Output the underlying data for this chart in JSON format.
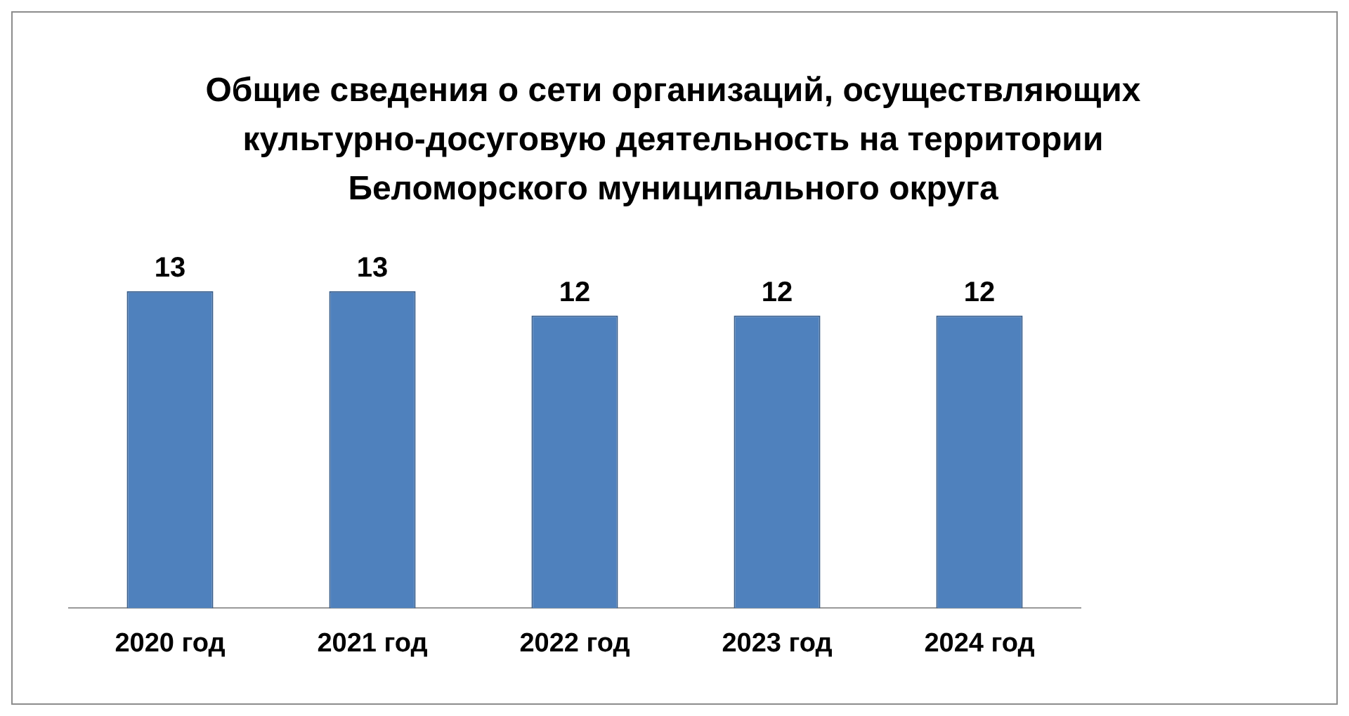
{
  "chart_data": {
    "type": "bar",
    "title": "Общие сведения о сети организаций, осуществляющих культурно-досуговую деятельность на территории Беломорского муниципального округа",
    "categories": [
      "2020 год",
      "2021 год",
      "2022 год",
      "2023 год",
      "2024 год"
    ],
    "values": [
      13,
      13,
      12,
      12,
      12
    ],
    "color": "#4f81bd",
    "data_labels": true,
    "tick_labels": "x",
    "grid": false,
    "legend": false
  }
}
